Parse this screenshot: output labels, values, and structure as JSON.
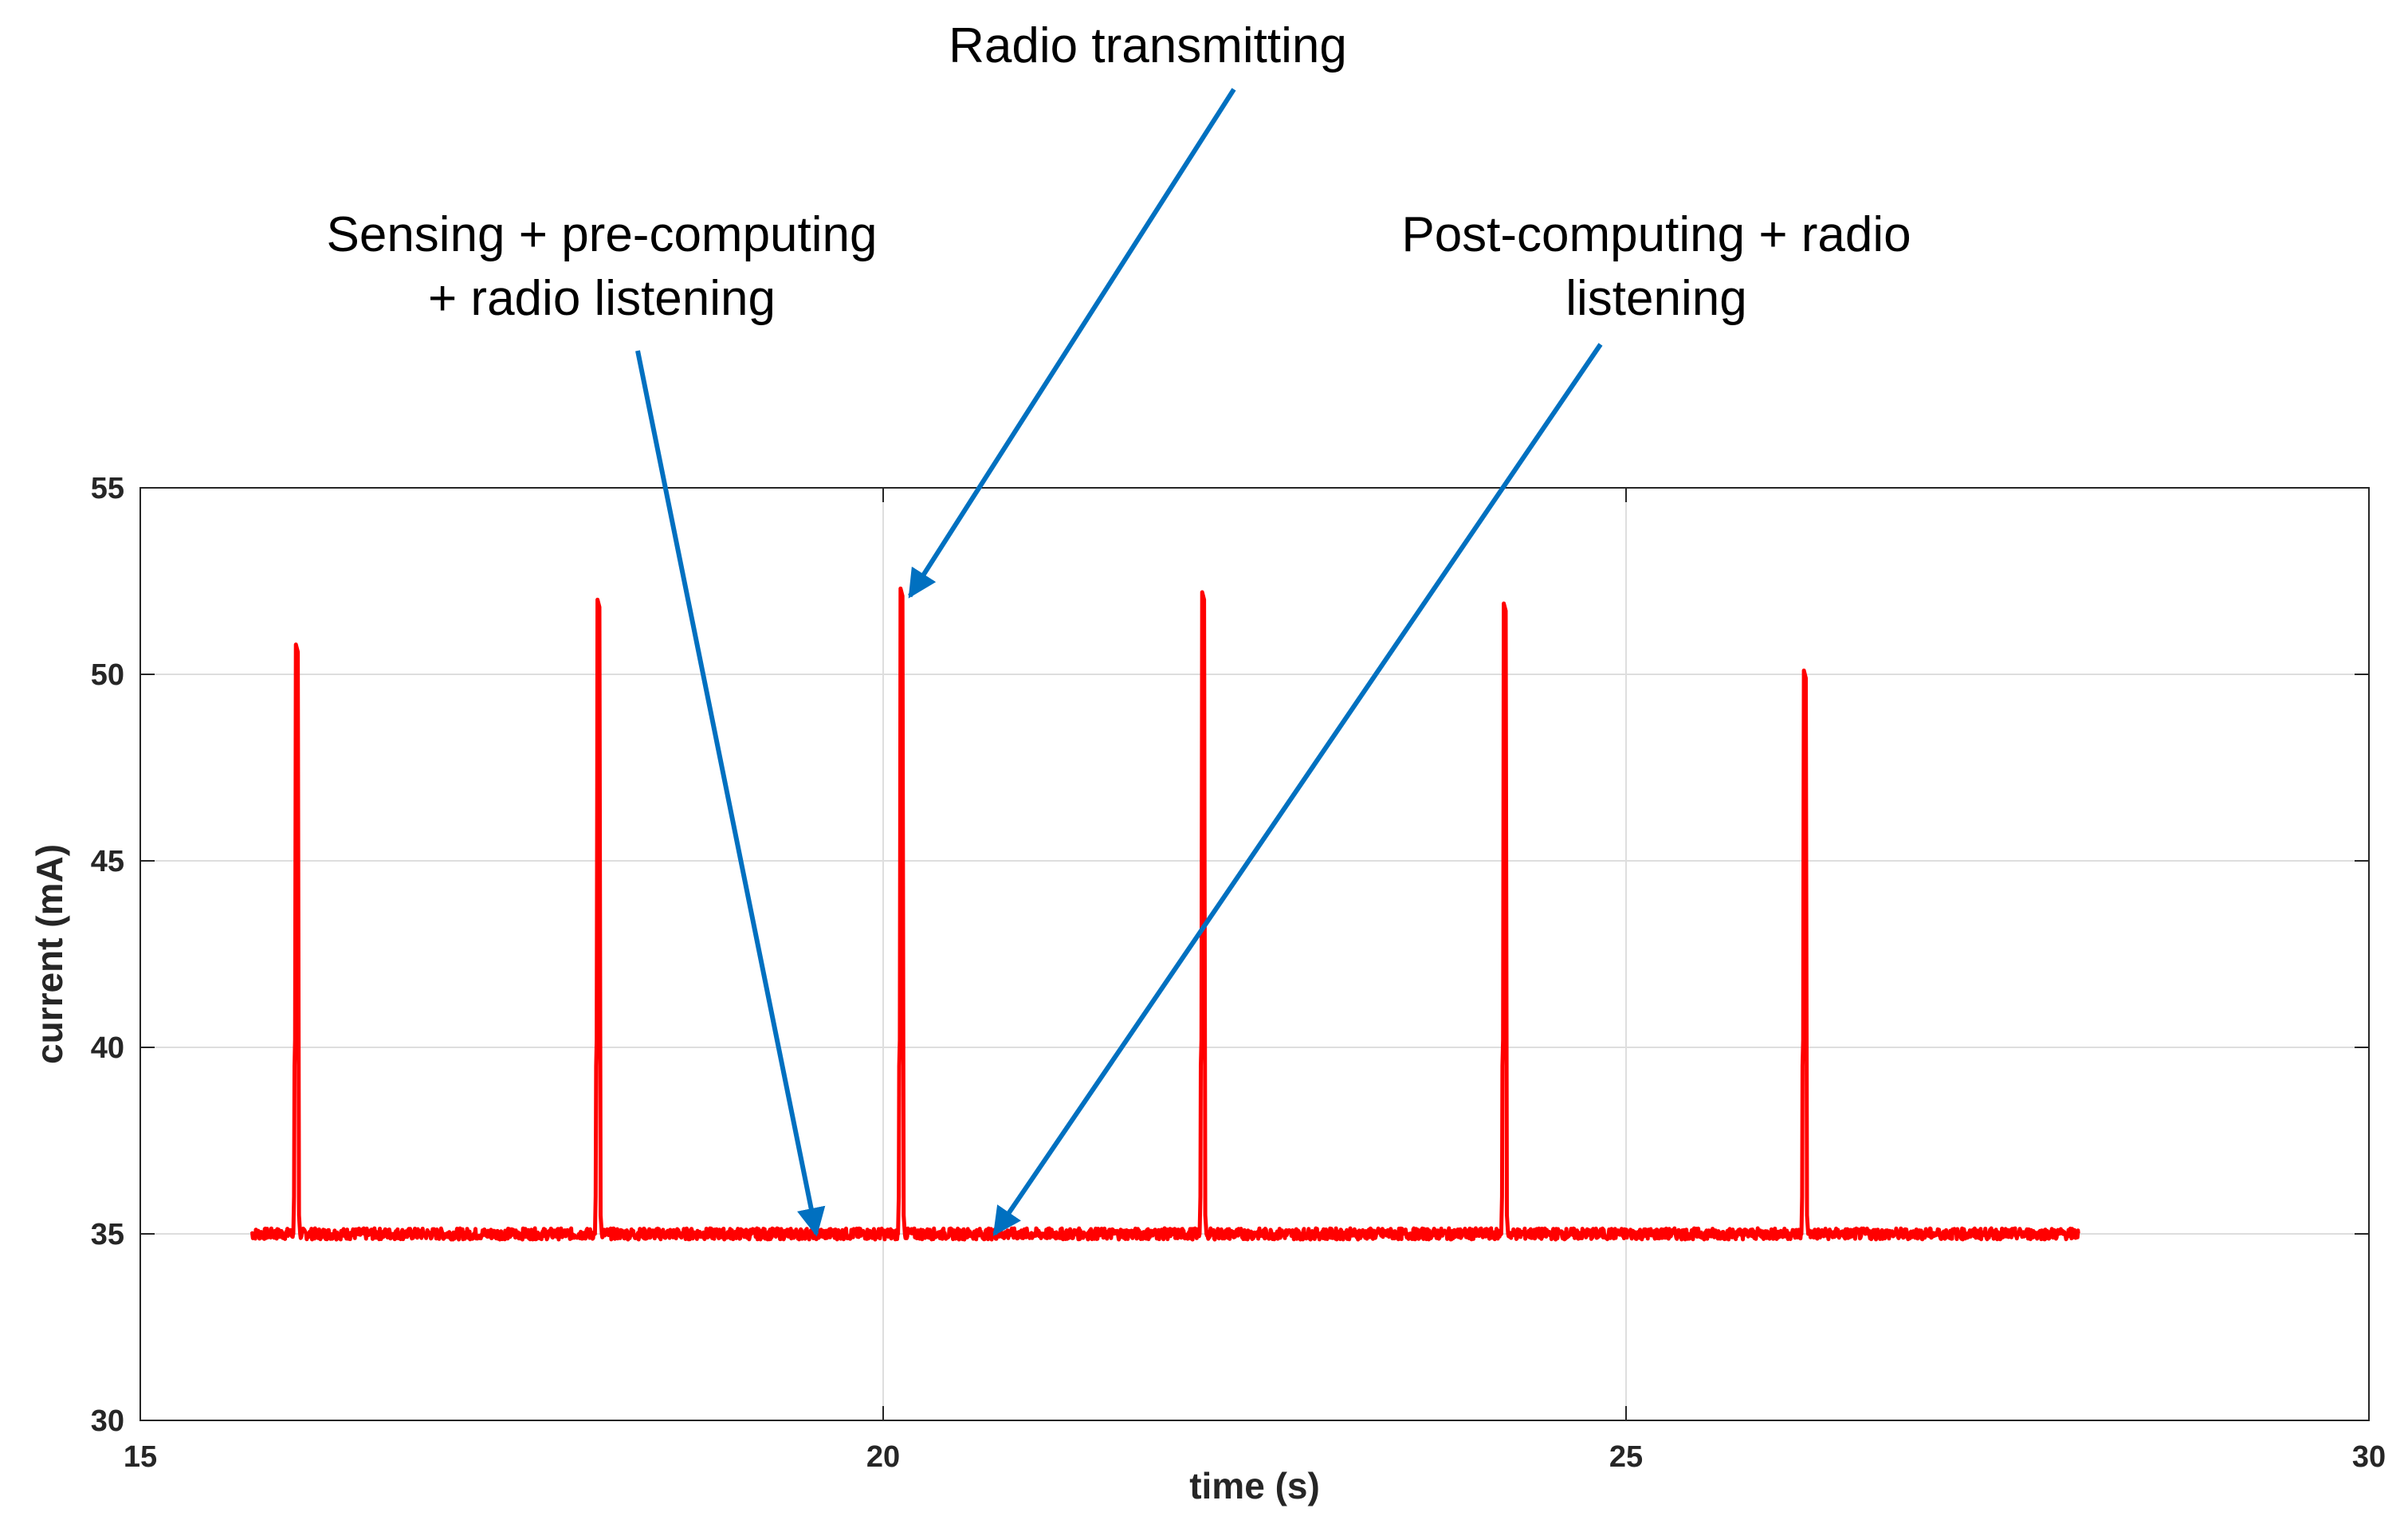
{
  "chart_data": {
    "type": "line",
    "title": "",
    "xlabel": "time (s)",
    "ylabel": "current (mA)",
    "xlim": [
      15,
      30
    ],
    "ylim": [
      30,
      55
    ],
    "xticks": [
      15,
      20,
      25,
      30
    ],
    "yticks": [
      30,
      35,
      40,
      45,
      50,
      55
    ],
    "grid": true,
    "legend": "none",
    "series": [
      {
        "color": "#ff0000",
        "baseline": 35,
        "x_range": [
          15.75,
          28.05
        ],
        "spikes": [
          {
            "x": 16.05,
            "peak": 50.8
          },
          {
            "x": 18.08,
            "peak": 52.0
          },
          {
            "x": 20.12,
            "peak": 52.3
          },
          {
            "x": 22.15,
            "peak": 52.2
          },
          {
            "x": 24.18,
            "peak": 51.9
          },
          {
            "x": 26.2,
            "peak": 50.1
          }
        ]
      }
    ],
    "annotations": [
      {
        "lines": [
          "Radio transmitting"
        ],
        "color": "#0070c0",
        "target": {
          "x": 20.18,
          "y": 52.1
        }
      },
      {
        "lines": [
          "Sensing + pre-computing",
          "+ radio listening"
        ],
        "color": "#0070c0",
        "target": {
          "x": 19.55,
          "y": 35.0
        }
      },
      {
        "lines": [
          "Post-computing + radio",
          "listening"
        ],
        "color": "#0070c0",
        "target": {
          "x": 20.75,
          "y": 35.0
        }
      }
    ]
  }
}
